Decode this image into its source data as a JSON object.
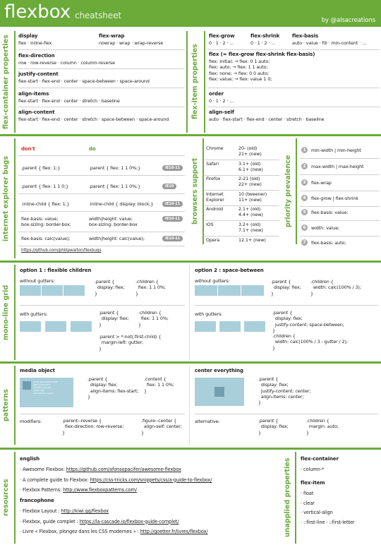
{
  "header": {
    "title": "flexbox",
    "subtitle": "cheatsheet",
    "author": "by @alsacreations"
  },
  "container": {
    "label": "flex-container properties",
    "items": [
      {
        "name": "display",
        "values": "flex · inline-flex"
      },
      {
        "name": "flex-wrap",
        "values": "nowrap · wrap · wrap-reverse"
      },
      {
        "name": "flex-direction",
        "values": "row · row-reverse · column · column-reverse"
      },
      {
        "name": "justify-content",
        "values": "flex-start · flex-end · center · space-between · space-around"
      },
      {
        "name": "align-items",
        "values": "flex-start · flex-end · center · stretch · baseline"
      },
      {
        "name": "align-content",
        "values": "flex-start · flex-end · center · stretch · space-between · space-around"
      }
    ]
  },
  "item": {
    "label": "flex-item properties",
    "items": [
      {
        "name": "flex-grow",
        "values": "0 · 1 · 2 · …"
      },
      {
        "name": "flex-shrink",
        "values": "0 · 1 · 2 · …"
      },
      {
        "name": "flex-basis",
        "values": "auto · value · fill · min-content · …"
      },
      {
        "name": "flex (= flex-grow flex-shrink flex-basis)",
        "values": "flex: initial; → flex: 0 1 auto;\nflex: auto; → flex: 1 1 auto;\nflex: none; → flex: 0 0 auto;\nflex: value; → flex: value 1 0;"
      },
      {
        "name": "order",
        "values": "0 · 1 · 2 · …"
      },
      {
        "name": "align-self",
        "values": "auto · flex-start · flex-end · center · stretch · baseline"
      }
    ]
  },
  "ie": {
    "label": "internet explorer bugs",
    "dont": "don't",
    "do": "do",
    "rows": [
      [
        ".parent { flex: 1;}",
        ".parent { flex: 1 1 0%;}",
        "IE10-11"
      ],
      [
        ".parent { flex: 1 1 0;}",
        ".parent { flex: 1 1 0%;}",
        "IE10"
      ],
      [
        ".inline-child { flex: 1;}",
        ".inline-child { display: block;}",
        "IE10-11"
      ],
      [
        "flex-basis: value;\nbox-sizing: border-box;",
        "width|height: value;\nbox-sizing: border-box",
        "IE10-11"
      ],
      [
        "flex-basis: calc(value);",
        "width|height: calc(value);",
        "IE10-11"
      ]
    ],
    "link": "https://github.com/philipwalton/flexbugs"
  },
  "browsers": {
    "label": "browsers support",
    "rows": [
      [
        "Chrome",
        "20- (old)\n21+ (new)"
      ],
      [
        "Safari",
        "3.1+ (old)\n6.1+ (new)"
      ],
      [
        "Firefox",
        "2-21 (old)\n22+ (new)"
      ],
      [
        "Internet\nExplorer",
        "10 (tweener)\n11+ (new)"
      ],
      [
        "Android",
        "2.1+ (old)\n4.4+ (new)"
      ],
      [
        "iOS",
        "3.2+ (old)\n7.1+ (new)"
      ],
      [
        "Opera",
        "12.1+ (new)"
      ]
    ]
  },
  "priority": {
    "label": "priority prevalence",
    "rows": [
      [
        "1",
        "min-width | min-height"
      ],
      [
        "2",
        "max-width | max-height"
      ],
      [
        "3",
        "flex-wrap"
      ],
      [
        "4",
        "flex-grow | flex-shrink"
      ],
      [
        "5",
        "flex-basis: value;"
      ],
      [
        "6",
        "width: value;"
      ],
      [
        "7",
        "flex-basis: auto;"
      ]
    ]
  },
  "grid": {
    "label": "mono-line grid",
    "option1": {
      "title": "option 1 : flexible children",
      "without": "without gutters:",
      "with": "with gutters:",
      "code1a": ".parent {\n  display: flex;\n}",
      "code1b": ".children {\n  flex: 1 1 0%;\n}",
      "code2a": ".parent {\n  display: flex;\n}",
      "code2b": ".children {\n  flex: 1 1 0%;\n}",
      "code2c": ".parent > *:not(:first-child) {\n  margin-left: gutter;\n}"
    },
    "option2": {
      "title": "option 2 : space-between",
      "without": "without gutters:",
      "with": "with gutters:",
      "code1a": ".parent {\n  display: flex;\n}",
      "code1b": ".children {\n  width: calc(100% / 3);\n}",
      "code2a": ".parent {\n  display: flex;\n  justify-content: space-between;\n}",
      "code2b": ".children {\n  width: calc(100% / 3 - gutter / 2);\n}"
    }
  },
  "patterns": {
    "label": "patterns",
    "media": {
      "title": "media object",
      "sample": "Lorem Ipsum Ipsum text\nwith some text to\nillustrate how you\nmedia with\nelements as column",
      "code1": ".parent {\n  display: flex;\n  align-items: flex-start;\n}",
      "code2": ".content {\n  flex: 1 1 0%;\n}",
      "modifiers": "modifiers:",
      "code3": ".parent--reverse {\n  flex-direction: row-reverse;\n}",
      "code4": ".figure--center {\n  align-self: center;\n}"
    },
    "center": {
      "title": "center everything",
      "code1": ".parent {\n  display: flex;\n  justify-content: center;\n  align-items: center;\n}",
      "alternative": "alternative:",
      "code2": ".parent {\n  display: flex;\n}",
      "code3": ".children {\n  margin: auto;\n}"
    }
  },
  "resources": {
    "label": "resources",
    "english": {
      "title": "english",
      "links": [
        {
          "text": "Awesome Flexbox: ",
          "url": "https://github.com/afonsopacifer/awesome-flexbox"
        },
        {
          "text": "A complete guide to Flexbox: ",
          "url": "https://css-tricks.com/snippets/css/a-guide-to-flexbox/"
        },
        {
          "text": "Flexbox Patterns: ",
          "url": "http://www.flexboxpatterns.com/"
        }
      ]
    },
    "french": {
      "title": "francophone",
      "links": [
        {
          "text": "Flexbox Layout : ",
          "url": "http://kiwi.gg/flexbox"
        },
        {
          "text": "Flexbox, guide complet : ",
          "url": "https://la-cascade.io/flexbox-guide-complet/"
        },
        {
          "text": "Livre « Flexbox, plongez dans les CSS modernes » : ",
          "url": "http://goetter.fr/livres/flexbox/"
        }
      ]
    }
  },
  "unapplied": {
    "label": "unapplied properties",
    "container": {
      "title": "flex-container",
      "items": [
        "column-*"
      ]
    },
    "item": {
      "title": "flex-item",
      "items": [
        "float",
        "clear",
        "vertical-align",
        "::first-line · ::first-letter"
      ]
    }
  }
}
